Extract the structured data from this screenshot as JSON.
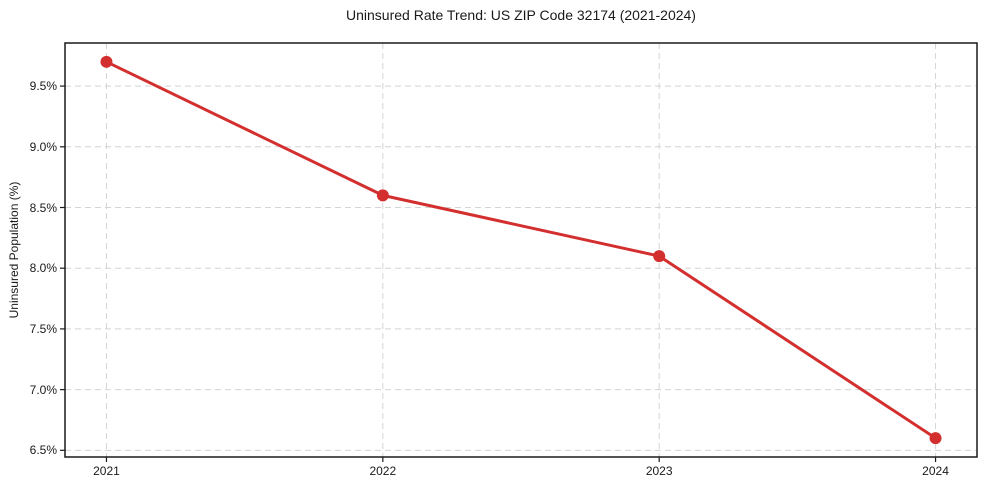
{
  "figure": {
    "title": "Uninsured Rate Trend: US ZIP Code 32174 (2021-2024)"
  },
  "chart_data": {
    "type": "line",
    "title": "Uninsured Rate Trend: US ZIP Code 32174 (2021-2024)",
    "xlabel": "",
    "ylabel": "Uninsured Population (%)",
    "categories": [
      "2021",
      "2022",
      "2023",
      "2024"
    ],
    "x": [
      2021,
      2022,
      2023,
      2024
    ],
    "series": [
      {
        "name": "Uninsured rate",
        "values": [
          9.7,
          8.6,
          8.1,
          6.6
        ]
      }
    ],
    "y_ticks": [
      6.5,
      7.0,
      7.5,
      8.0,
      8.5,
      9.0,
      9.5
    ],
    "y_tick_labels": [
      "6.5%",
      "7.0%",
      "7.5%",
      "8.0%",
      "8.5%",
      "9.0%",
      "9.5%"
    ],
    "xlim": [
      2020.85,
      2024.15
    ],
    "ylim": [
      6.445,
      9.855
    ],
    "grid": true,
    "grid_style": "dashed",
    "legend": "none",
    "line_color": "#d32f2f",
    "marker": "circle",
    "marker_radius": 6,
    "line_width": 3,
    "gridline_color": "#d4d4d4",
    "axis_color": "#1a1a1a",
    "background": "#ffffff"
  }
}
